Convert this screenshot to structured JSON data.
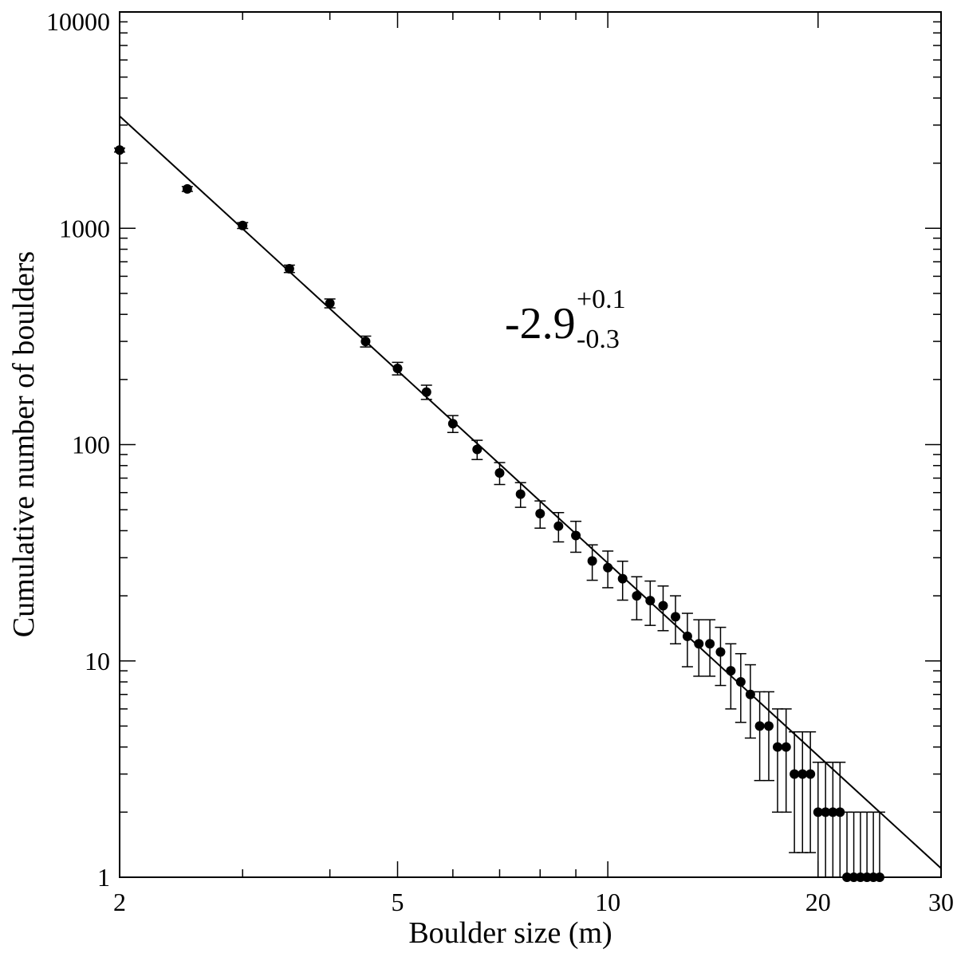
{
  "chart_data": {
    "type": "scatter",
    "x_label": "Boulder size (m)",
    "y_label": "Cumulative number of boulders",
    "xscale": "log",
    "yscale": "log",
    "xlim": [
      2,
      30
    ],
    "ylim": [
      1,
      10000
    ],
    "xticks": [
      2,
      5,
      10,
      20,
      30
    ],
    "xminorticks": [
      3,
      4,
      6,
      7,
      8,
      9
    ],
    "yticks": [
      1,
      10,
      100,
      1000,
      10000
    ],
    "yminorticks": [
      2,
      3,
      4,
      5,
      6,
      7,
      8,
      9,
      20,
      30,
      40,
      50,
      60,
      70,
      80,
      90,
      200,
      300,
      400,
      500,
      600,
      700,
      800,
      900,
      2000,
      3000,
      4000,
      5000,
      6000,
      7000,
      8000,
      9000
    ],
    "annotation": {
      "text": "-2.9",
      "sup": "+0.1",
      "sub": "-0.3"
    },
    "series": [
      {
        "type": "scatter",
        "color": "#000000",
        "x": [
          2,
          2.5,
          3,
          3.5,
          4,
          4.5,
          5,
          5.5,
          6,
          6.5,
          7,
          7.5,
          8,
          8.5,
          9,
          9.5,
          10,
          10.5,
          11,
          11.5,
          12,
          12.5,
          13,
          13.5,
          14,
          14.5,
          15,
          15.5,
          16,
          16.5,
          17,
          17.5,
          18,
          18.5,
          19,
          19.5,
          20,
          20.5,
          21,
          21.5,
          22,
          22.5,
          23,
          23.5,
          24,
          24.5
        ],
        "values": [
          2300,
          1520,
          1030,
          650,
          450,
          300,
          225,
          175,
          125,
          95,
          74,
          59,
          48,
          42,
          38,
          29,
          27,
          24,
          20,
          19,
          18,
          16,
          13,
          12,
          12,
          11,
          9,
          8,
          7,
          5,
          5,
          4,
          4,
          3,
          3,
          3,
          2,
          2,
          2,
          2,
          1,
          1,
          1,
          1,
          1,
          1
        ],
        "errors": [
          48,
          39,
          32.1,
          25.5,
          21.2,
          17.3,
          15,
          13.2,
          11.2,
          9.7,
          8.6,
          7.7,
          6.9,
          6.5,
          6.2,
          5.4,
          5.2,
          4.9,
          4.5,
          4.4,
          4.2,
          4,
          3.6,
          3.5,
          3.5,
          3.3,
          3,
          2.8,
          2.6,
          2.2,
          2.2,
          2,
          2,
          1.7,
          1.7,
          1.7,
          1.4,
          1.4,
          1.4,
          1.4,
          1,
          1,
          1,
          1,
          1,
          1
        ]
      },
      {
        "type": "line",
        "color": "#000000",
        "x": [
          2,
          30
        ],
        "values": [
          3300,
          1.1
        ]
      }
    ]
  }
}
